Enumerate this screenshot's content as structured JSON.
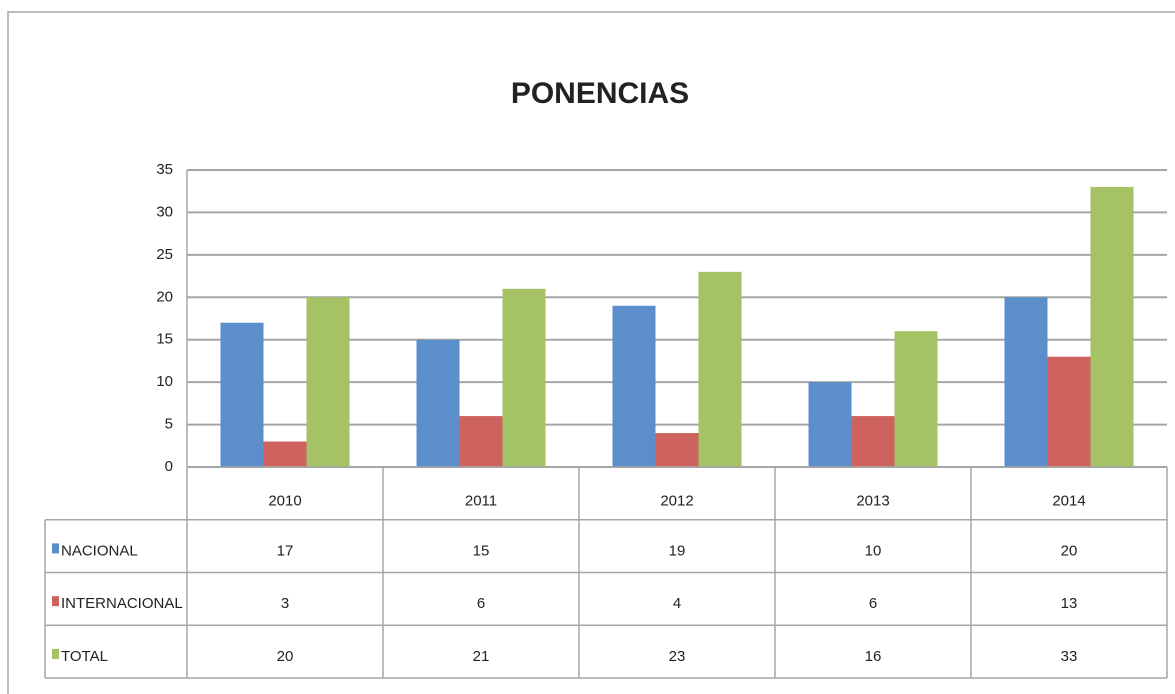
{
  "chart_data": {
    "type": "bar",
    "title": "PONENCIAS",
    "categories": [
      "2010",
      "2011",
      "2012",
      "2013",
      "2014"
    ],
    "series": [
      {
        "name": "NACIONAL",
        "color": "#5b8ecb",
        "values": [
          17,
          15,
          19,
          10,
          20
        ]
      },
      {
        "name": "INTERNACIONAL",
        "color": "#cd625e",
        "values": [
          3,
          6,
          4,
          6,
          13
        ]
      },
      {
        "name": "TOTAL",
        "color": "#a5c364",
        "values": [
          20,
          21,
          23,
          16,
          33
        ]
      }
    ],
    "ylim": [
      0,
      35
    ],
    "yticks": [
      0,
      5,
      10,
      15,
      20,
      25,
      30,
      35
    ],
    "grid": true,
    "data_table": true
  }
}
